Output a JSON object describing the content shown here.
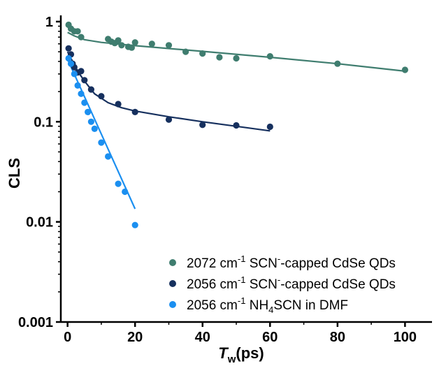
{
  "chart_data": {
    "type": "scatter",
    "xlabel_main": "T",
    "xlabel_sub": "w",
    "xlabel_unit": "(ps)",
    "ylabel": "CLS",
    "xlim": [
      -2,
      108
    ],
    "ylim": [
      0.001,
      1.1
    ],
    "yscale": "log",
    "x_ticks": [
      0,
      20,
      40,
      60,
      80,
      100
    ],
    "x_tick_labels": [
      "0",
      "20",
      "40",
      "60",
      "80",
      "100"
    ],
    "y_ticks": [
      1,
      0.1,
      0.01,
      0.001
    ],
    "y_tick_labels": [
      "1",
      "0.1",
      "0.01",
      "0.001"
    ],
    "legend_placement": "bottom-right",
    "series": [
      {
        "legend": [
          "2072 cm",
          "-1",
          " SCN",
          "-",
          "-capped CdSe QDs"
        ],
        "color": "#3f7d6f",
        "points": [
          {
            "x": 0.3,
            "y": 0.93
          },
          {
            "x": 1,
            "y": 0.85
          },
          {
            "x": 2,
            "y": 0.8
          },
          {
            "x": 3,
            "y": 0.8
          },
          {
            "x": 4,
            "y": 0.7
          },
          {
            "x": 12,
            "y": 0.67
          },
          {
            "x": 13,
            "y": 0.63
          },
          {
            "x": 14,
            "y": 0.61
          },
          {
            "x": 15,
            "y": 0.65
          },
          {
            "x": 16,
            "y": 0.58
          },
          {
            "x": 18,
            "y": 0.56
          },
          {
            "x": 19,
            "y": 0.55
          },
          {
            "x": 20,
            "y": 0.62
          },
          {
            "x": 25,
            "y": 0.6
          },
          {
            "x": 30,
            "y": 0.58
          },
          {
            "x": 35,
            "y": 0.5
          },
          {
            "x": 40,
            "y": 0.48
          },
          {
            "x": 45,
            "y": 0.44
          },
          {
            "x": 50,
            "y": 0.43
          },
          {
            "x": 60,
            "y": 0.45
          },
          {
            "x": 80,
            "y": 0.38
          },
          {
            "x": 100,
            "y": 0.33
          }
        ],
        "fit": [
          {
            "x": 0,
            "y": 0.78
          },
          {
            "x": 2,
            "y": 0.72
          },
          {
            "x": 5,
            "y": 0.66
          },
          {
            "x": 10,
            "y": 0.62
          },
          {
            "x": 20,
            "y": 0.575
          },
          {
            "x": 40,
            "y": 0.505
          },
          {
            "x": 60,
            "y": 0.44
          },
          {
            "x": 80,
            "y": 0.38
          },
          {
            "x": 100,
            "y": 0.32
          }
        ]
      },
      {
        "legend": [
          "2056 cm",
          "-1",
          " SCN",
          "-",
          "-capped CdSe QDs"
        ],
        "color": "#16305e",
        "points": [
          {
            "x": 0.3,
            "y": 0.54
          },
          {
            "x": 1,
            "y": 0.47
          },
          {
            "x": 1.5,
            "y": 0.38
          },
          {
            "x": 2,
            "y": 0.35
          },
          {
            "x": 3,
            "y": 0.31
          },
          {
            "x": 4,
            "y": 0.32
          },
          {
            "x": 5,
            "y": 0.26
          },
          {
            "x": 7,
            "y": 0.21
          },
          {
            "x": 10,
            "y": 0.18
          },
          {
            "x": 15,
            "y": 0.15
          },
          {
            "x": 20,
            "y": 0.125
          },
          {
            "x": 30,
            "y": 0.105
          },
          {
            "x": 40,
            "y": 0.093
          },
          {
            "x": 50,
            "y": 0.092
          },
          {
            "x": 60,
            "y": 0.089
          }
        ],
        "fit": [
          {
            "x": 0,
            "y": 0.5
          },
          {
            "x": 1,
            "y": 0.43
          },
          {
            "x": 2,
            "y": 0.37
          },
          {
            "x": 3,
            "y": 0.32
          },
          {
            "x": 5,
            "y": 0.255
          },
          {
            "x": 8,
            "y": 0.19
          },
          {
            "x": 12,
            "y": 0.155
          },
          {
            "x": 16,
            "y": 0.138
          },
          {
            "x": 20,
            "y": 0.128
          },
          {
            "x": 30,
            "y": 0.112
          },
          {
            "x": 40,
            "y": 0.1
          },
          {
            "x": 50,
            "y": 0.09
          },
          {
            "x": 60,
            "y": 0.081
          }
        ]
      },
      {
        "legend": [
          "2056 cm",
          "-1",
          " NH",
          "4",
          "SCN in DMF"
        ],
        "color": "#1b8ff0",
        "points": [
          {
            "x": 0.3,
            "y": 0.43
          },
          {
            "x": 1,
            "y": 0.38
          },
          {
            "x": 2,
            "y": 0.3
          },
          {
            "x": 3,
            "y": 0.23
          },
          {
            "x": 4,
            "y": 0.19
          },
          {
            "x": 5,
            "y": 0.155
          },
          {
            "x": 6,
            "y": 0.125
          },
          {
            "x": 7,
            "y": 0.1
          },
          {
            "x": 8,
            "y": 0.085
          },
          {
            "x": 10,
            "y": 0.062
          },
          {
            "x": 12,
            "y": 0.045
          },
          {
            "x": 15,
            "y": 0.024
          },
          {
            "x": 17,
            "y": 0.02
          },
          {
            "x": 20,
            "y": 0.0093
          }
        ],
        "fit": [
          {
            "x": 0,
            "y": 0.42
          },
          {
            "x": 20,
            "y": 0.0135
          }
        ]
      }
    ]
  }
}
